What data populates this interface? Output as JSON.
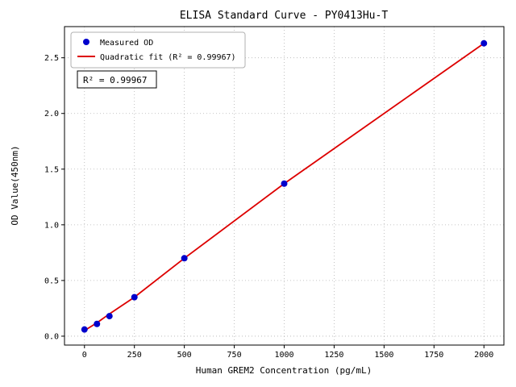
{
  "window": {
    "background": "#ffffff"
  },
  "chart_data": {
    "type": "scatter",
    "title": "ELISA Standard Curve - PY0413Hu-T",
    "xlabel": "Human GREM2 Concentration (pg/mL)",
    "ylabel": "OD Value(450nm)",
    "xlim": [
      -100,
      2100
    ],
    "ylim": [
      -0.08,
      2.78
    ],
    "xticks": [
      0,
      250,
      500,
      750,
      1000,
      1250,
      1500,
      1750,
      2000
    ],
    "yticks": [
      0.0,
      0.5,
      1.0,
      1.5,
      2.0,
      2.5
    ],
    "grid": "dotted",
    "legend_position": "upper left",
    "series": [
      {
        "name": "Measured OD",
        "kind": "scatter",
        "color": "#0000cc",
        "x": [
          0,
          62.5,
          125,
          250,
          500,
          1000,
          2000
        ],
        "y": [
          0.06,
          0.11,
          0.18,
          0.35,
          0.7,
          1.37,
          2.63
        ]
      },
      {
        "name": "Quadratic fit (R² = 0.99967)",
        "kind": "line",
        "color": "#dd0000",
        "x": [
          0,
          62.5,
          125,
          250,
          500,
          1000,
          2000
        ],
        "y": [
          0.05,
          0.12,
          0.2,
          0.35,
          0.7,
          1.37,
          2.63
        ]
      }
    ],
    "legend": {
      "items": [
        {
          "label": "Measured OD",
          "marker": "dot",
          "color": "#0000cc"
        },
        {
          "label": "Quadratic fit (R² = 0.99967)",
          "marker": "line",
          "color": "#dd0000"
        }
      ]
    },
    "annotation": "R² = 0.99967",
    "r_squared": 0.99967
  }
}
